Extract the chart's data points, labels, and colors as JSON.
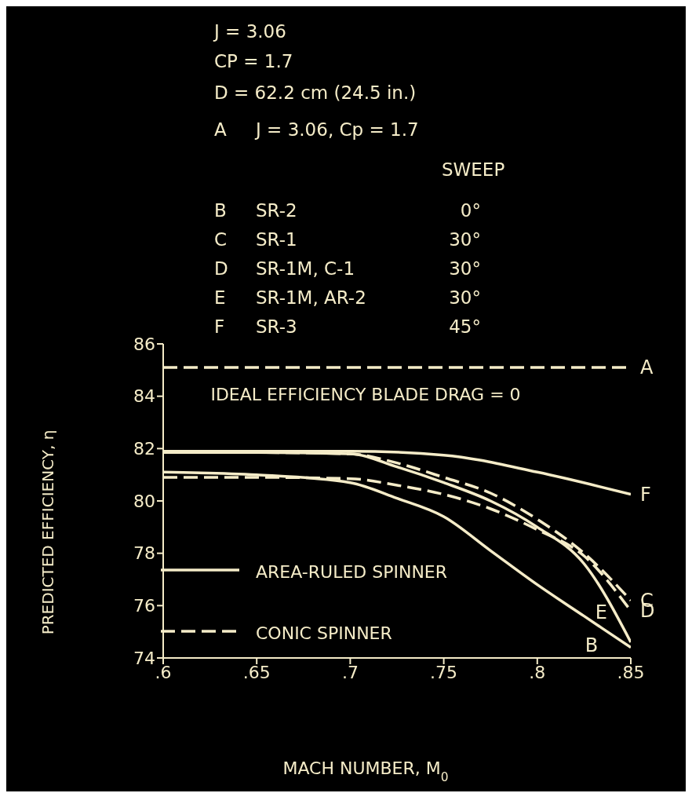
{
  "chart_data": {
    "type": "line",
    "xlabel": "MACH NUMBER, M$_{0}$",
    "ylabel": "PREDICTED EFFICIENCY, η",
    "xlim": [
      0.6,
      0.85
    ],
    "xticks": [
      {
        "value": 0.6,
        "label": ".6"
      },
      {
        "value": 0.65,
        "label": ".65"
      },
      {
        "value": 0.7,
        "label": ".7"
      },
      {
        "value": 0.75,
        "label": ".75"
      },
      {
        "value": 0.8,
        "label": ".8"
      },
      {
        "value": 0.85,
        "label": ".85"
      }
    ],
    "ylim": [
      74,
      86
    ],
    "yticks": [
      74,
      76,
      78,
      80,
      82,
      84,
      86
    ],
    "grid": false,
    "marker": "none",
    "series": [
      {
        "name": "A",
        "color": "#f5ecc8",
        "line_style": "dashed",
        "x": [
          0.6,
          0.7,
          0.8,
          0.85
        ],
        "values": [
          85.1,
          85.1,
          85.1,
          85.1
        ]
      },
      {
        "name": "B",
        "color": "#f5ecc8",
        "line_style": "solid",
        "x": [
          0.6,
          0.65,
          0.7,
          0.725,
          0.75,
          0.775,
          0.8,
          0.825,
          0.85
        ],
        "values": [
          81.1,
          81.0,
          80.7,
          80.1,
          79.4,
          78.1,
          76.8,
          75.6,
          74.4
        ]
      },
      {
        "name": "C",
        "color": "#f5ecc8",
        "line_style": "dashed",
        "x": [
          0.6,
          0.65,
          0.7,
          0.725,
          0.75,
          0.775,
          0.8,
          0.825,
          0.85
        ],
        "values": [
          81.85,
          81.85,
          81.8,
          81.45,
          80.9,
          80.3,
          79.3,
          78.0,
          76.2
        ]
      },
      {
        "name": "D",
        "color": "#f5ecc8",
        "line_style": "dashed",
        "x": [
          0.6,
          0.65,
          0.7,
          0.725,
          0.75,
          0.775,
          0.8,
          0.825,
          0.85
        ],
        "values": [
          80.9,
          80.9,
          80.85,
          80.6,
          80.25,
          79.7,
          78.9,
          77.9,
          75.8
        ]
      },
      {
        "name": "E",
        "color": "#f5ecc8",
        "line_style": "solid",
        "x": [
          0.6,
          0.65,
          0.7,
          0.725,
          0.75,
          0.775,
          0.8,
          0.825,
          0.85
        ],
        "values": [
          81.85,
          81.85,
          81.8,
          81.3,
          80.7,
          80.0,
          79.0,
          77.6,
          74.6
        ]
      },
      {
        "name": "F",
        "color": "#f5ecc8",
        "line_style": "solid",
        "x": [
          0.6,
          0.65,
          0.7,
          0.75,
          0.8,
          0.85
        ],
        "values": [
          81.9,
          81.9,
          81.9,
          81.75,
          81.1,
          80.25
        ]
      }
    ],
    "annotations": [
      "J = 3.06",
      "CP = 1.7",
      "D = 62.2 cm (24.5 in.)",
      "A",
      "J = 3.06, Cp = 1.7",
      "SWEEP",
      "B",
      "SR-2",
      "0°",
      "C",
      "SR-1",
      "30°",
      "D",
      "SR-1M, C-1",
      "30°",
      "E",
      "SR-1M, AR-2",
      "30°",
      "F",
      "SR-3",
      "45°",
      "IDEAL EFFICIENCY BLADE DRAG = 0",
      "AREA-RULED SPINNER",
      "CONIC SPINNER"
    ]
  }
}
